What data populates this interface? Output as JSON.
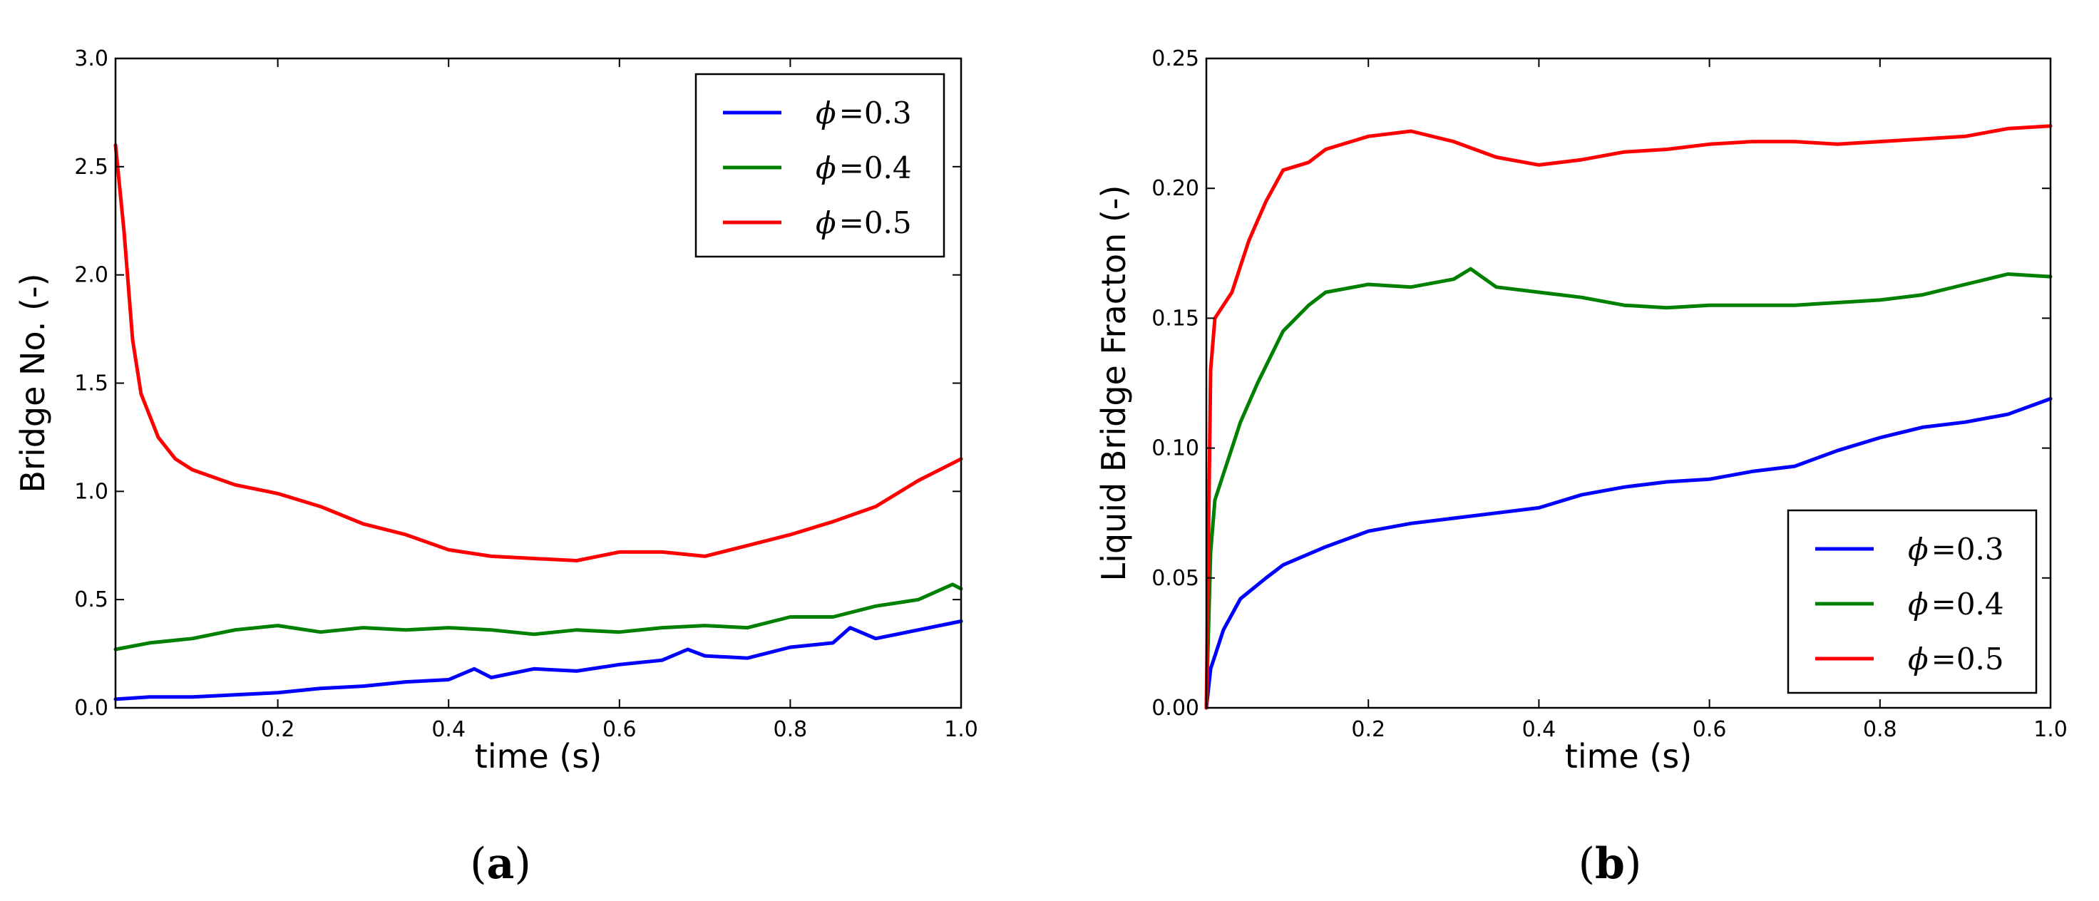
{
  "chart_data": [
    {
      "type": "line",
      "panel_label": "(a)",
      "xlabel": "time (s)",
      "ylabel": "Bridge No. (-)",
      "xlim": [
        0.01,
        1.0
      ],
      "ylim": [
        0.0,
        3.0
      ],
      "xticks": [
        "0.2",
        "0.4",
        "0.6",
        "0.8",
        "1.0"
      ],
      "yticks": [
        "0.0",
        "0.5",
        "1.0",
        "1.5",
        "2.0",
        "2.5",
        "3.0"
      ],
      "legend_position": "upper-right",
      "grid": false,
      "series": [
        {
          "name": "ϕ=0.3",
          "color": "#0000ff",
          "x": [
            0.01,
            0.05,
            0.1,
            0.15,
            0.2,
            0.25,
            0.3,
            0.35,
            0.4,
            0.43,
            0.45,
            0.5,
            0.55,
            0.6,
            0.65,
            0.68,
            0.7,
            0.75,
            0.8,
            0.85,
            0.87,
            0.9,
            0.95,
            1.0
          ],
          "y": [
            0.04,
            0.05,
            0.05,
            0.06,
            0.07,
            0.09,
            0.1,
            0.12,
            0.13,
            0.18,
            0.14,
            0.18,
            0.17,
            0.2,
            0.22,
            0.27,
            0.24,
            0.23,
            0.28,
            0.3,
            0.37,
            0.32,
            0.36,
            0.4
          ]
        },
        {
          "name": "ϕ=0.4",
          "color": "#008000",
          "x": [
            0.01,
            0.05,
            0.1,
            0.15,
            0.2,
            0.25,
            0.3,
            0.35,
            0.4,
            0.45,
            0.5,
            0.55,
            0.6,
            0.65,
            0.7,
            0.75,
            0.8,
            0.85,
            0.9,
            0.95,
            0.99,
            1.0
          ],
          "y": [
            0.27,
            0.3,
            0.32,
            0.36,
            0.38,
            0.35,
            0.37,
            0.36,
            0.37,
            0.36,
            0.34,
            0.36,
            0.35,
            0.37,
            0.38,
            0.37,
            0.42,
            0.42,
            0.47,
            0.5,
            0.57,
            0.55
          ]
        },
        {
          "name": "ϕ=0.5",
          "color": "#ff0000",
          "x": [
            0.01,
            0.02,
            0.03,
            0.04,
            0.05,
            0.06,
            0.08,
            0.1,
            0.15,
            0.2,
            0.25,
            0.3,
            0.35,
            0.4,
            0.45,
            0.5,
            0.55,
            0.6,
            0.65,
            0.7,
            0.75,
            0.8,
            0.85,
            0.9,
            0.95,
            1.0
          ],
          "y": [
            2.6,
            2.2,
            1.7,
            1.45,
            1.35,
            1.25,
            1.15,
            1.1,
            1.03,
            0.99,
            0.93,
            0.85,
            0.8,
            0.73,
            0.7,
            0.69,
            0.68,
            0.72,
            0.72,
            0.7,
            0.75,
            0.8,
            0.86,
            0.93,
            1.05,
            1.15
          ]
        }
      ]
    },
    {
      "type": "line",
      "panel_label": "(b)",
      "xlabel": "time (s)",
      "ylabel": "Liquid Bridge Fracton (-)",
      "xlim": [
        0.01,
        1.0
      ],
      "ylim": [
        0.0,
        0.25
      ],
      "xticks": [
        "0.2",
        "0.4",
        "0.6",
        "0.8",
        "1.0"
      ],
      "yticks": [
        "0.00",
        "0.05",
        "0.10",
        "0.15",
        "0.20",
        "0.25"
      ],
      "legend_position": "lower-right",
      "grid": false,
      "series": [
        {
          "name": "ϕ=0.3",
          "color": "#0000ff",
          "x": [
            0.01,
            0.015,
            0.02,
            0.03,
            0.05,
            0.08,
            0.1,
            0.15,
            0.2,
            0.25,
            0.3,
            0.35,
            0.4,
            0.45,
            0.5,
            0.55,
            0.6,
            0.65,
            0.7,
            0.75,
            0.8,
            0.85,
            0.9,
            0.95,
            1.0
          ],
          "y": [
            0.0,
            0.015,
            0.02,
            0.03,
            0.042,
            0.05,
            0.055,
            0.062,
            0.068,
            0.071,
            0.073,
            0.075,
            0.077,
            0.082,
            0.085,
            0.087,
            0.088,
            0.091,
            0.093,
            0.099,
            0.104,
            0.108,
            0.11,
            0.113,
            0.119
          ]
        },
        {
          "name": "ϕ=0.4",
          "color": "#008000",
          "x": [
            0.01,
            0.015,
            0.02,
            0.03,
            0.04,
            0.05,
            0.07,
            0.1,
            0.13,
            0.15,
            0.2,
            0.25,
            0.3,
            0.32,
            0.35,
            0.4,
            0.45,
            0.5,
            0.55,
            0.6,
            0.65,
            0.7,
            0.75,
            0.8,
            0.85,
            0.9,
            0.95,
            1.0
          ],
          "y": [
            0.0,
            0.06,
            0.08,
            0.09,
            0.1,
            0.11,
            0.125,
            0.145,
            0.155,
            0.16,
            0.163,
            0.162,
            0.165,
            0.169,
            0.162,
            0.16,
            0.158,
            0.155,
            0.154,
            0.155,
            0.155,
            0.155,
            0.156,
            0.157,
            0.159,
            0.163,
            0.167,
            0.166
          ]
        },
        {
          "name": "ϕ=0.5",
          "color": "#ff0000",
          "x": [
            0.01,
            0.015,
            0.02,
            0.03,
            0.04,
            0.05,
            0.06,
            0.08,
            0.1,
            0.13,
            0.15,
            0.2,
            0.25,
            0.3,
            0.35,
            0.4,
            0.45,
            0.5,
            0.55,
            0.6,
            0.65,
            0.7,
            0.75,
            0.8,
            0.85,
            0.9,
            0.95,
            1.0
          ],
          "y": [
            0.0,
            0.13,
            0.15,
            0.155,
            0.16,
            0.17,
            0.18,
            0.195,
            0.207,
            0.21,
            0.215,
            0.22,
            0.222,
            0.218,
            0.212,
            0.209,
            0.211,
            0.214,
            0.215,
            0.217,
            0.218,
            0.218,
            0.217,
            0.218,
            0.219,
            0.22,
            0.223,
            0.224
          ]
        }
      ]
    }
  ]
}
